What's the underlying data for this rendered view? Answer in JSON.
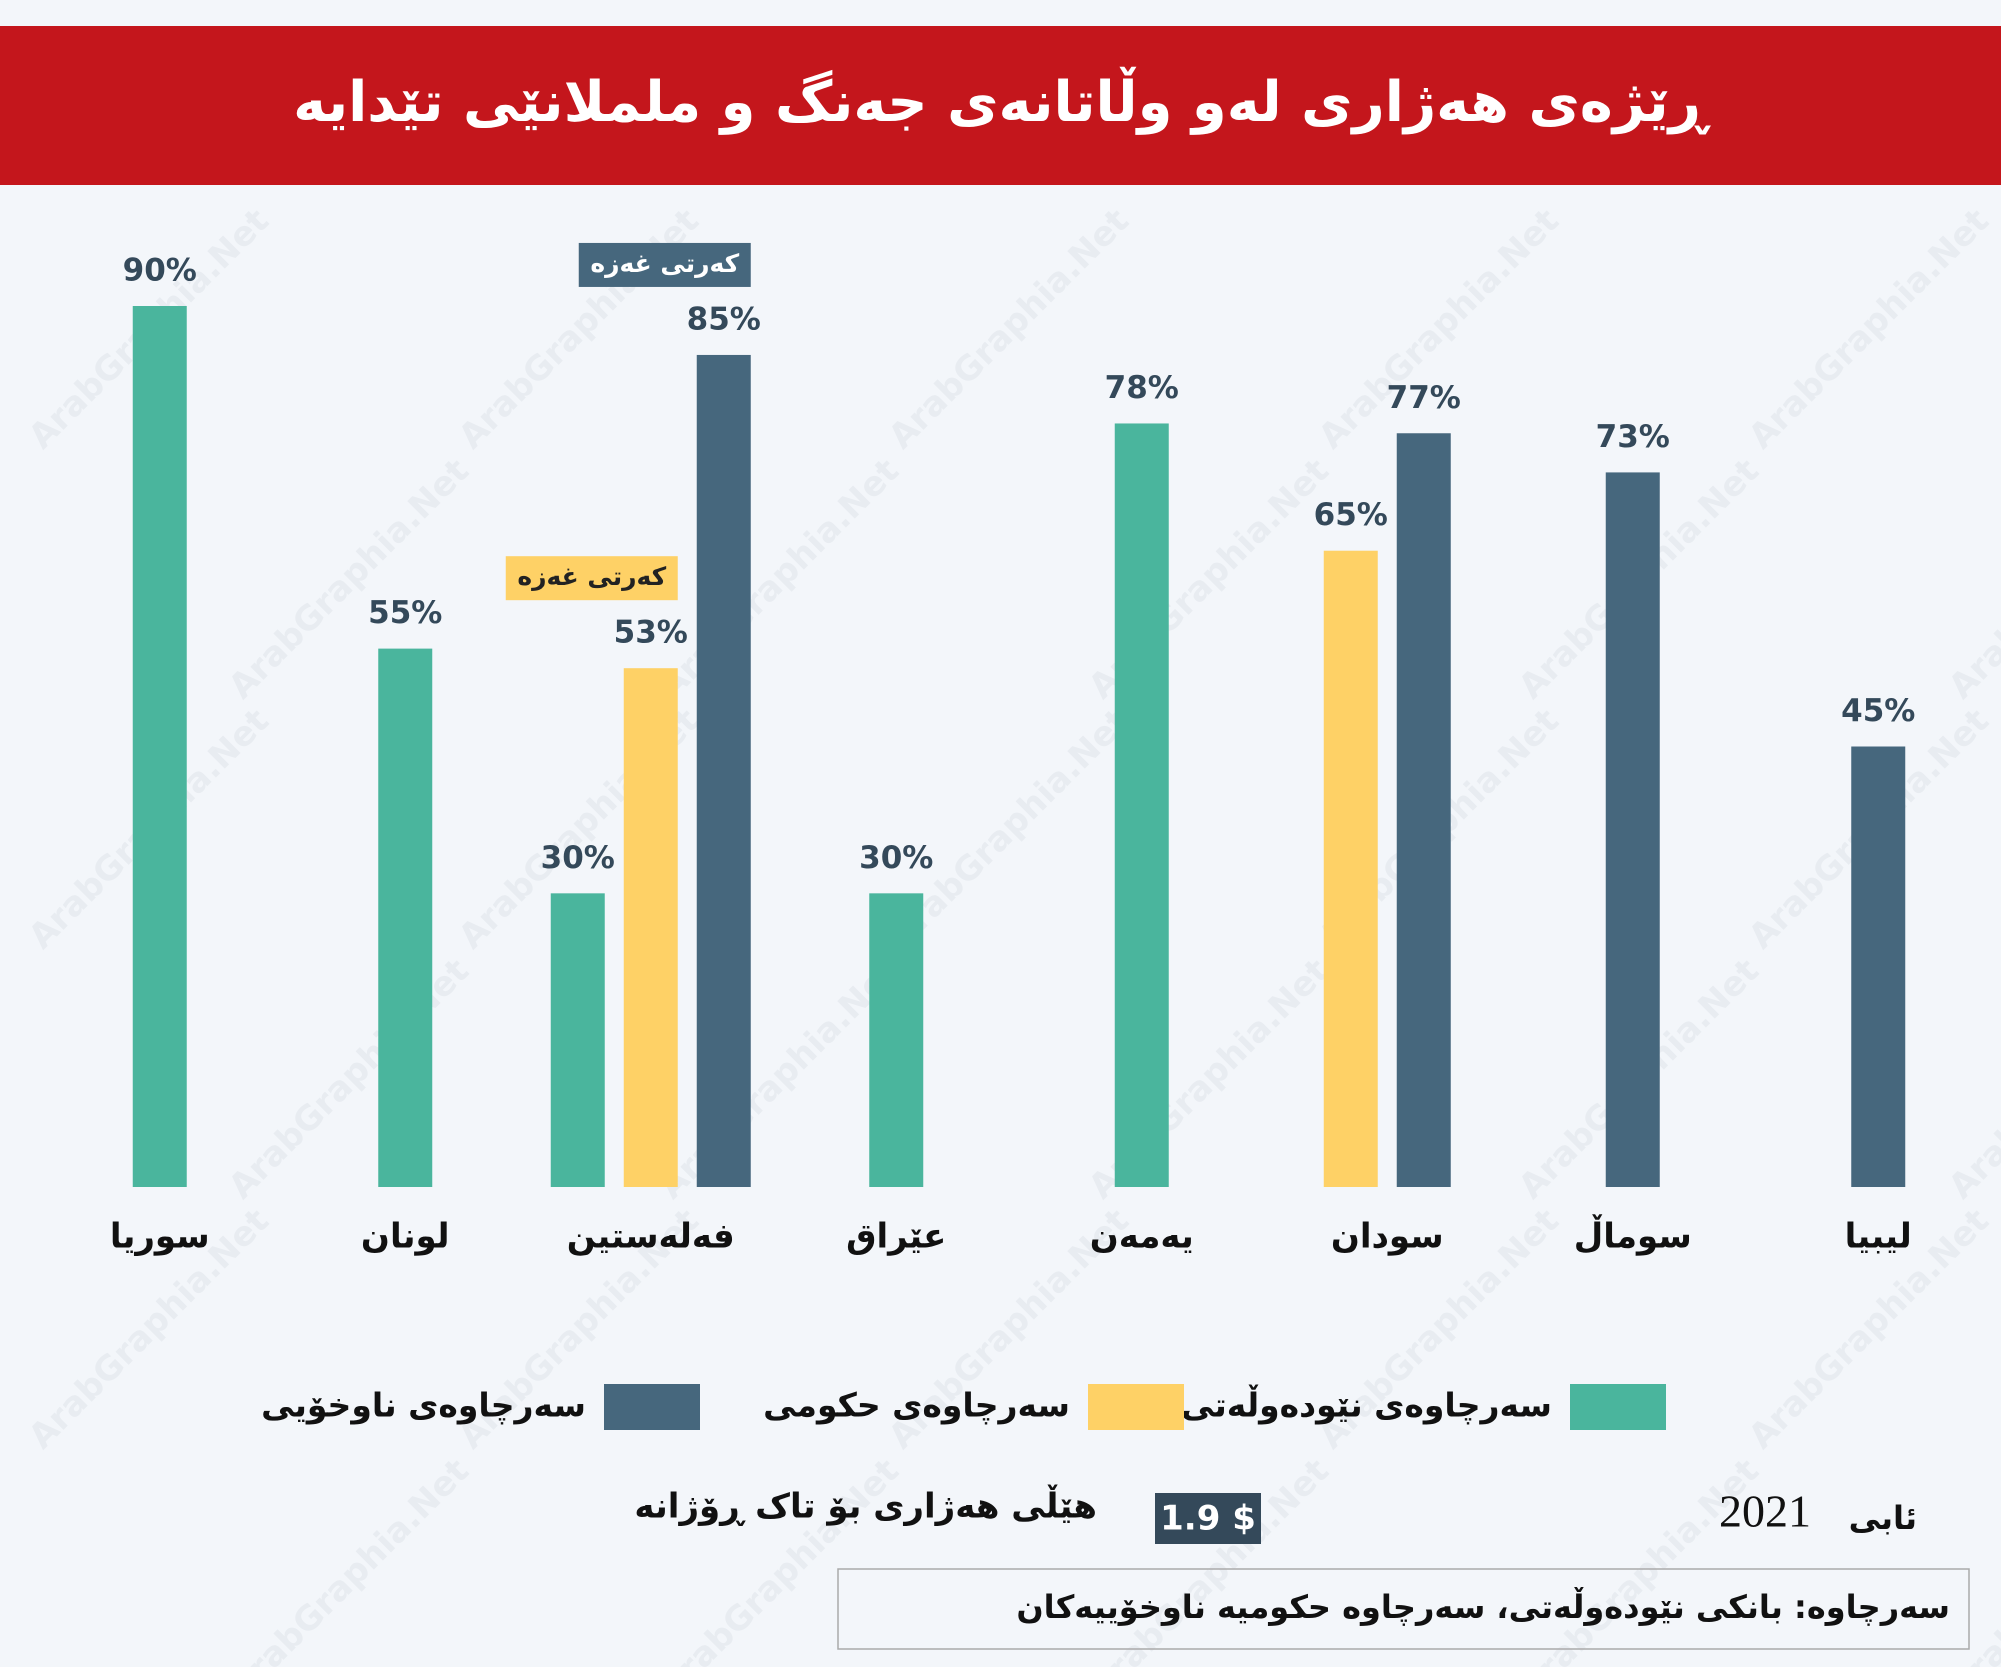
{
  "chart_data": {
    "type": "bar",
    "title": "ڕێژەی هەژاری لەو وڵاتانەی جەنگ و ململانێی تێدایە",
    "categories": [
      "سوريا",
      "لونان",
      "فەلەستین",
      "عێراق",
      "یەمەن",
      "سودان",
      "سوماڵ",
      "لیبیا"
    ],
    "series": [
      {
        "name": "سەرچاوەی نێودەوڵەتی",
        "color": "#4ab59d",
        "values": [
          90,
          55,
          30,
          30,
          78,
          null,
          null,
          null
        ],
        "value_labels": [
          "90%",
          "55%",
          "30%",
          "30%",
          "78%",
          null,
          null,
          null
        ],
        "notes": [
          null,
          null,
          null,
          null,
          null,
          null,
          null,
          null
        ]
      },
      {
        "name": "سەرچاوەی حکومی",
        "color": "#fed166",
        "values": [
          null,
          null,
          53,
          null,
          null,
          65,
          null,
          null
        ],
        "value_labels": [
          null,
          null,
          "53%",
          null,
          null,
          "65%",
          null,
          null
        ],
        "notes": [
          null,
          null,
          "کەرتی غەزە",
          null,
          null,
          null,
          null,
          null
        ]
      },
      {
        "name": "سەرچاوەی ناوخۆیی",
        "color": "#46677d",
        "values": [
          null,
          null,
          85,
          null,
          null,
          77,
          73,
          45
        ],
        "value_labels": [
          null,
          null,
          "85%",
          null,
          null,
          "77%",
          "73%",
          "45%"
        ],
        "notes": [
          null,
          null,
          "کەرتی غەزە",
          null,
          null,
          null,
          null,
          null
        ]
      }
    ]
  },
  "footer": {
    "poverty_line_label": "هێڵی هەژاری بۆ تاک ڕۆژانە",
    "poverty_line_value": "1.9 $",
    "date_month": "ئابی",
    "date_year": "2021",
    "source": "سەرچاوە: بانکی نێودەوڵەتی، سەرچاوە حکومیە ناوخۆییەکان"
  },
  "watermark": "ArabGraphia.Net"
}
